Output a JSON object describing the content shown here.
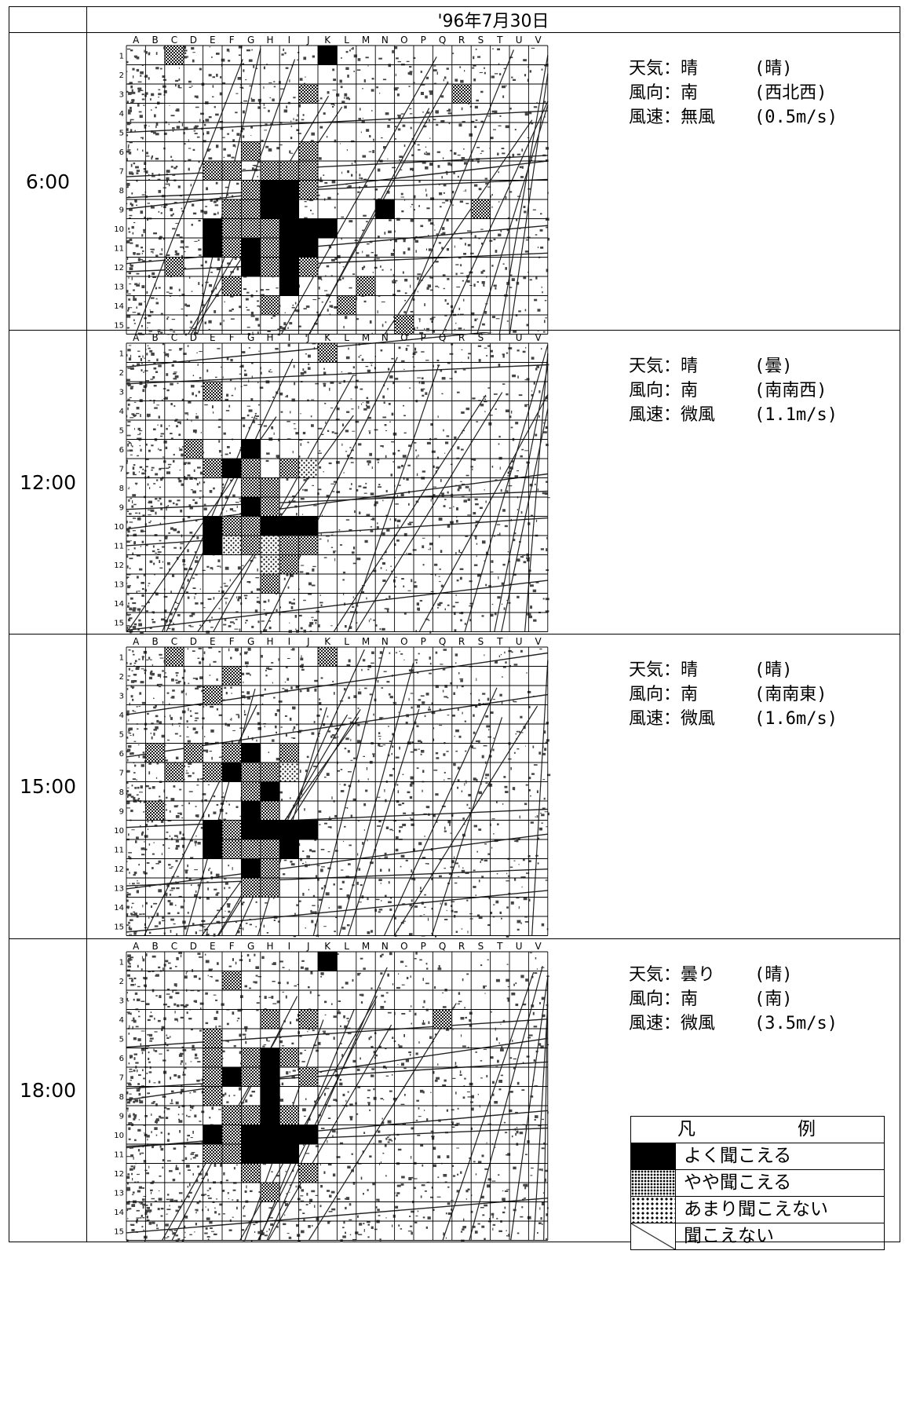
{
  "header_fragments": {
    "left": "",
    "right": ""
  },
  "date": "'96年7月30日",
  "columns": [
    "A",
    "B",
    "C",
    "D",
    "E",
    "F",
    "G",
    "H",
    "I",
    "J",
    "K",
    "L",
    "M",
    "N",
    "O",
    "P",
    "Q",
    "R",
    "S",
    "T",
    "U",
    "V"
  ],
  "rows": [
    "1",
    "2",
    "3",
    "4",
    "5",
    "6",
    "7",
    "8",
    "9",
    "10",
    "11",
    "12",
    "13",
    "14",
    "15"
  ],
  "legend": {
    "title": "凡　　例",
    "items": [
      {
        "key": "good",
        "label": "よく聞こえる"
      },
      {
        "key": "some",
        "label": "やや聞こえる"
      },
      {
        "key": "little",
        "label": "あまり聞こえない"
      },
      {
        "key": "none",
        "label": "聞こえない"
      }
    ]
  },
  "colors": {
    "good": "#000000",
    "some": "#333333",
    "little": "#7a7a7a",
    "none": "#ffffff"
  },
  "panels": [
    {
      "time": "6:00",
      "weather": {
        "label": "天気：晴",
        "value": "(晴)"
      },
      "wind_dir": {
        "label": "風向：南",
        "value": "(西北西)"
      },
      "wind_speed": {
        "label": "風速：無風",
        "value": "(0.5m/s)"
      },
      "cells": [
        [
          "C1",
          "some"
        ],
        [
          "K1",
          "good"
        ],
        [
          "J3",
          "some"
        ],
        [
          "R3",
          "some"
        ],
        [
          "G6",
          "some"
        ],
        [
          "J6",
          "some"
        ],
        [
          "E7",
          "some"
        ],
        [
          "F7",
          "some"
        ],
        [
          "H7",
          "some"
        ],
        [
          "I7",
          "some"
        ],
        [
          "J7",
          "some"
        ],
        [
          "H8",
          "good"
        ],
        [
          "I8",
          "good"
        ],
        [
          "G8",
          "some"
        ],
        [
          "J8",
          "some"
        ],
        [
          "H9",
          "good"
        ],
        [
          "I9",
          "good"
        ],
        [
          "F9",
          "some"
        ],
        [
          "G9",
          "some"
        ],
        [
          "N9",
          "good"
        ],
        [
          "S9",
          "some"
        ],
        [
          "E10",
          "good"
        ],
        [
          "I10",
          "good"
        ],
        [
          "J10",
          "good"
        ],
        [
          "K10",
          "good"
        ],
        [
          "F10",
          "some"
        ],
        [
          "G10",
          "some"
        ],
        [
          "H10",
          "some"
        ],
        [
          "E11",
          "good"
        ],
        [
          "G11",
          "good"
        ],
        [
          "I11",
          "good"
        ],
        [
          "J11",
          "good"
        ],
        [
          "F11",
          "some"
        ],
        [
          "H11",
          "some"
        ],
        [
          "G12",
          "good"
        ],
        [
          "I12",
          "good"
        ],
        [
          "C12",
          "some"
        ],
        [
          "H12",
          "some"
        ],
        [
          "J12",
          "some"
        ],
        [
          "I13",
          "good"
        ],
        [
          "F13",
          "some"
        ],
        [
          "M13",
          "some"
        ],
        [
          "H14",
          "some"
        ],
        [
          "L14",
          "some"
        ],
        [
          "O15",
          "some"
        ]
      ]
    },
    {
      "time": "12:00",
      "weather": {
        "label": "天気：晴",
        "value": "(曇)"
      },
      "wind_dir": {
        "label": "風向：南",
        "value": "(南南西)"
      },
      "wind_speed": {
        "label": "風速：微風",
        "value": "(1.1m/s)"
      },
      "cells": [
        [
          "K1",
          "some"
        ],
        [
          "E3",
          "some"
        ],
        [
          "D6",
          "some"
        ],
        [
          "G6",
          "good"
        ],
        [
          "E7",
          "some"
        ],
        [
          "F7",
          "good"
        ],
        [
          "G7",
          "some"
        ],
        [
          "I7",
          "some"
        ],
        [
          "J7",
          "little"
        ],
        [
          "G8",
          "some"
        ],
        [
          "H8",
          "some"
        ],
        [
          "G9",
          "good"
        ],
        [
          "H9",
          "some"
        ],
        [
          "E10",
          "good"
        ],
        [
          "F10",
          "some"
        ],
        [
          "G10",
          "some"
        ],
        [
          "H10",
          "good"
        ],
        [
          "I10",
          "good"
        ],
        [
          "J10",
          "good"
        ],
        [
          "E11",
          "good"
        ],
        [
          "F11",
          "little"
        ],
        [
          "G11",
          "some"
        ],
        [
          "H11",
          "little"
        ],
        [
          "I11",
          "some"
        ],
        [
          "J11",
          "some"
        ],
        [
          "H12",
          "little"
        ],
        [
          "I12",
          "some"
        ],
        [
          "H13",
          "some"
        ]
      ]
    },
    {
      "time": "15:00",
      "weather": {
        "label": "天気：晴",
        "value": "(晴)"
      },
      "wind_dir": {
        "label": "風向：南",
        "value": "(南南東)"
      },
      "wind_speed": {
        "label": "風速：微風",
        "value": "(1.6m/s)"
      },
      "cells": [
        [
          "C1",
          "some"
        ],
        [
          "K1",
          "some"
        ],
        [
          "F2",
          "some"
        ],
        [
          "E3",
          "some"
        ],
        [
          "B6",
          "some"
        ],
        [
          "D6",
          "some"
        ],
        [
          "F6",
          "some"
        ],
        [
          "G6",
          "good"
        ],
        [
          "I6",
          "some"
        ],
        [
          "C7",
          "some"
        ],
        [
          "E7",
          "some"
        ],
        [
          "F7",
          "good"
        ],
        [
          "G7",
          "some"
        ],
        [
          "H7",
          "some"
        ],
        [
          "I7",
          "little"
        ],
        [
          "G8",
          "some"
        ],
        [
          "H8",
          "good"
        ],
        [
          "B9",
          "some"
        ],
        [
          "G9",
          "good"
        ],
        [
          "H9",
          "some"
        ],
        [
          "E10",
          "good"
        ],
        [
          "F10",
          "some"
        ],
        [
          "G10",
          "good"
        ],
        [
          "H10",
          "good"
        ],
        [
          "I10",
          "good"
        ],
        [
          "J10",
          "good"
        ],
        [
          "E11",
          "good"
        ],
        [
          "F11",
          "some"
        ],
        [
          "G11",
          "some"
        ],
        [
          "H11",
          "some"
        ],
        [
          "I11",
          "good"
        ],
        [
          "G12",
          "good"
        ],
        [
          "H12",
          "some"
        ],
        [
          "G13",
          "some"
        ],
        [
          "H13",
          "some"
        ]
      ]
    },
    {
      "time": "18:00",
      "weather": {
        "label": "天気：曇り",
        "value": "(晴)"
      },
      "wind_dir": {
        "label": "風向：南",
        "value": "(南)"
      },
      "wind_speed": {
        "label": "風速：微風",
        "value": "(3.5m/s)"
      },
      "cells": [
        [
          "K1",
          "good"
        ],
        [
          "F2",
          "some"
        ],
        [
          "H4",
          "some"
        ],
        [
          "J4",
          "some"
        ],
        [
          "Q4",
          "some"
        ],
        [
          "E5",
          "some"
        ],
        [
          "E6",
          "some"
        ],
        [
          "G6",
          "some"
        ],
        [
          "H6",
          "good"
        ],
        [
          "I6",
          "some"
        ],
        [
          "E7",
          "some"
        ],
        [
          "F7",
          "good"
        ],
        [
          "G7",
          "some"
        ],
        [
          "H7",
          "good"
        ],
        [
          "J7",
          "some"
        ],
        [
          "E8",
          "some"
        ],
        [
          "H8",
          "good"
        ],
        [
          "F9",
          "some"
        ],
        [
          "G9",
          "some"
        ],
        [
          "H9",
          "good"
        ],
        [
          "I9",
          "some"
        ],
        [
          "E10",
          "good"
        ],
        [
          "F10",
          "some"
        ],
        [
          "G10",
          "good"
        ],
        [
          "H10",
          "good"
        ],
        [
          "I10",
          "good"
        ],
        [
          "J10",
          "good"
        ],
        [
          "E11",
          "some"
        ],
        [
          "F11",
          "some"
        ],
        [
          "G11",
          "good"
        ],
        [
          "H11",
          "good"
        ],
        [
          "I11",
          "good"
        ],
        [
          "G12",
          "some"
        ],
        [
          "J12",
          "some"
        ],
        [
          "H13",
          "some"
        ]
      ]
    }
  ]
}
